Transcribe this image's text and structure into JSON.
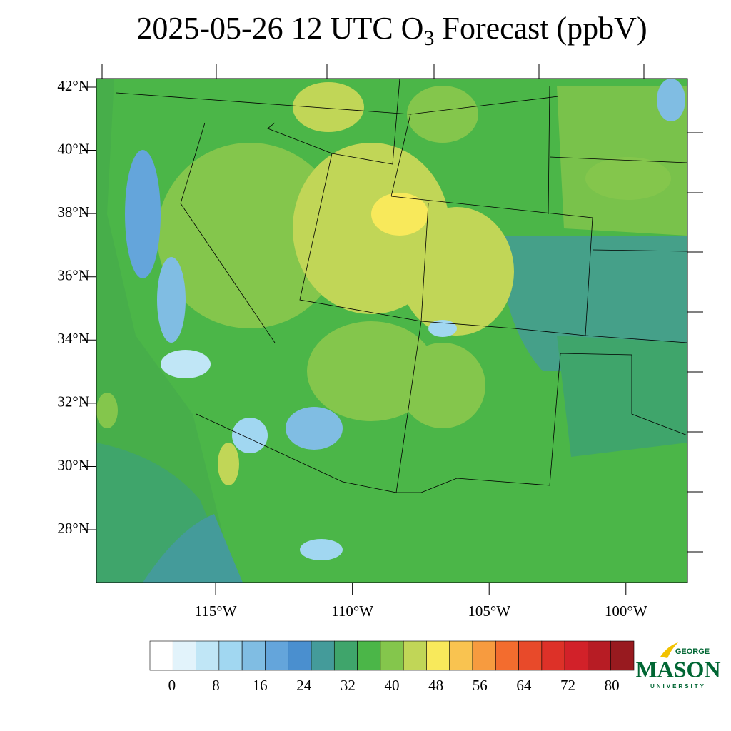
{
  "header": {
    "title_parts": [
      "2025-05-26 12 UTC O",
      "3",
      " Forecast (ppbV)"
    ]
  },
  "map": {
    "xlim": [
      -119.36,
      -97.75
    ],
    "ylim": [
      26.33,
      42.27
    ],
    "yticks": [
      {
        "value": 42,
        "label": "42°N"
      },
      {
        "value": 40,
        "label": "40°N"
      },
      {
        "value": 38,
        "label": "38°N"
      },
      {
        "value": 36,
        "label": "36°N"
      },
      {
        "value": 34,
        "label": "34°N"
      },
      {
        "value": 32,
        "label": "32°N"
      },
      {
        "value": 30,
        "label": "30°N"
      },
      {
        "value": 28,
        "label": "28°N"
      }
    ],
    "xticks": [
      {
        "value": -115,
        "label": "115°W"
      },
      {
        "value": -110,
        "label": "110°W"
      },
      {
        "value": -105,
        "label": "105°W"
      },
      {
        "value": -100,
        "label": "100°W"
      }
    ]
  },
  "colorbar": {
    "clim": [
      -4,
      84
    ],
    "ticks": [
      0,
      8,
      16,
      24,
      32,
      40,
      48,
      56,
      64,
      72,
      80
    ],
    "colors": [
      "#ffffff",
      "#e2f3fb",
      "#c0e6f6",
      "#a1d7f1",
      "#80bde3",
      "#64a5db",
      "#4a8fcf",
      "#449b9a",
      "#3fa56b",
      "#4bb648",
      "#84c64c",
      "#c1d657",
      "#f8e95b",
      "#f9c350",
      "#f79b3f",
      "#f36c2e",
      "#e84a2a",
      "#dd3128",
      "#d22129",
      "#b71c24",
      "#981a1f"
    ]
  },
  "logo": {
    "top": "GEORGE",
    "main": "MASON",
    "bottom": "UNIVERSITY"
  }
}
